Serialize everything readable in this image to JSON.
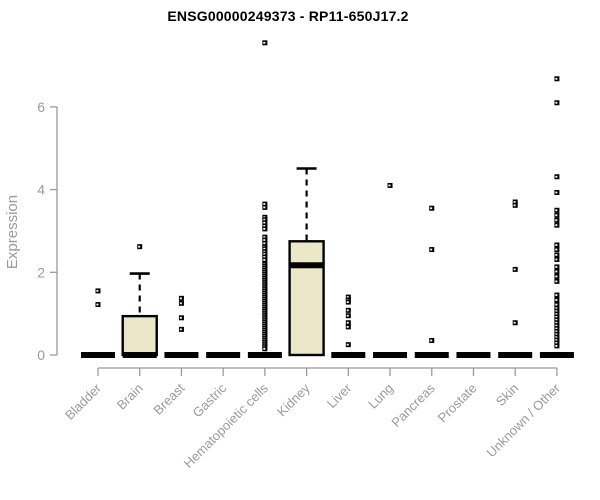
{
  "window": {
    "background": "#ffffff"
  },
  "chart_data": {
    "type": "boxplot",
    "title": "ENSG00000249373 - RP11-650J17.2",
    "ylabel": "Expression",
    "xlabel": "",
    "y_ticks": [
      0,
      2,
      4,
      6
    ],
    "ylim": [
      0,
      7.9
    ],
    "grid": false,
    "legend": false,
    "colors": {
      "box_fill": "#ECE7C9",
      "box_stroke": "#000000",
      "median": "#000000",
      "outlier": "#000000",
      "axis": "#9a9a9a",
      "tick_label": "#9a9a9a",
      "title": "#000000"
    },
    "categories": [
      {
        "label": "Bladder",
        "q1": 0,
        "median": 0,
        "q3": 0,
        "whisker_low": 0,
        "whisker_high": 0,
        "outliers": [
          1.55,
          1.22
        ]
      },
      {
        "label": "Brain",
        "q1": 0,
        "median": 0,
        "q3": 0.94,
        "whisker_low": 0,
        "whisker_high": 1.97,
        "outliers": [
          2.62
        ]
      },
      {
        "label": "Breast",
        "q1": 0,
        "median": 0,
        "q3": 0,
        "whisker_low": 0,
        "whisker_high": 0,
        "outliers": [
          1.37,
          1.25,
          0.9,
          0.62
        ]
      },
      {
        "label": "Gastric",
        "q1": 0,
        "median": 0,
        "q3": 0,
        "whisker_low": 0,
        "whisker_high": 0,
        "outliers": []
      },
      {
        "label": "Hematopoietic cells",
        "q1": 0,
        "median": 0,
        "q3": 0,
        "whisker_low": 0,
        "whisker_high": 0,
        "outliers": [
          7.55,
          3.65,
          3.57,
          3.33,
          3.27,
          3.2,
          3.12,
          3.05,
          2.85,
          2.78,
          2.7,
          2.62,
          2.57,
          2.5,
          2.44,
          2.37,
          2.3,
          2.2,
          2.15,
          2.1,
          2.05,
          2.0,
          1.95,
          1.9,
          1.85,
          1.8,
          1.75,
          1.7,
          1.65,
          1.6,
          1.55,
          1.5,
          1.45,
          1.4,
          1.35,
          1.3,
          1.25,
          1.2,
          1.15,
          1.1,
          1.05,
          1.0,
          0.95,
          0.9,
          0.85,
          0.8,
          0.75,
          0.7,
          0.65,
          0.6,
          0.55,
          0.5,
          0.45,
          0.4,
          0.35,
          0.3,
          0.25,
          0.2,
          0.15
        ]
      },
      {
        "label": "Kidney",
        "q1": 0,
        "median": 2.17,
        "q3": 2.75,
        "whisker_low": 0,
        "whisker_high": 4.51,
        "outliers": []
      },
      {
        "label": "Liver",
        "q1": 0,
        "median": 0,
        "q3": 0,
        "whisker_low": 0,
        "whisker_high": 0,
        "outliers": [
          1.4,
          1.33,
          1.28,
          1.08,
          0.95,
          0.78,
          0.68,
          0.25
        ]
      },
      {
        "label": "Lung",
        "q1": 0,
        "median": 0,
        "q3": 0,
        "whisker_low": 0,
        "whisker_high": 0,
        "outliers": [
          4.1
        ]
      },
      {
        "label": "Pancreas",
        "q1": 0,
        "median": 0,
        "q3": 0,
        "whisker_low": 0,
        "whisker_high": 0,
        "outliers": [
          3.55,
          2.55,
          0.35
        ]
      },
      {
        "label": "Prostate",
        "q1": 0,
        "median": 0,
        "q3": 0,
        "whisker_low": 0,
        "whisker_high": 0,
        "outliers": []
      },
      {
        "label": "Skin",
        "q1": 0,
        "median": 0,
        "q3": 0,
        "whisker_low": 0,
        "whisker_high": 0,
        "outliers": [
          3.7,
          3.62,
          2.07,
          0.78
        ]
      },
      {
        "label": "Unknown / Other",
        "q1": 0,
        "median": 0,
        "q3": 0,
        "whisker_low": 0,
        "whisker_high": 0,
        "outliers": [
          6.68,
          6.1,
          4.31,
          3.93,
          3.5,
          3.38,
          3.26,
          3.14,
          2.66,
          2.55,
          2.42,
          2.31,
          2.13,
          2.02,
          1.9,
          1.78,
          1.45,
          1.33,
          1.22,
          1.13,
          1.06,
          0.99,
          0.92,
          0.85,
          0.78,
          0.71,
          0.64,
          0.57,
          0.5,
          0.43,
          0.36,
          0.29,
          0.22
        ]
      }
    ]
  }
}
